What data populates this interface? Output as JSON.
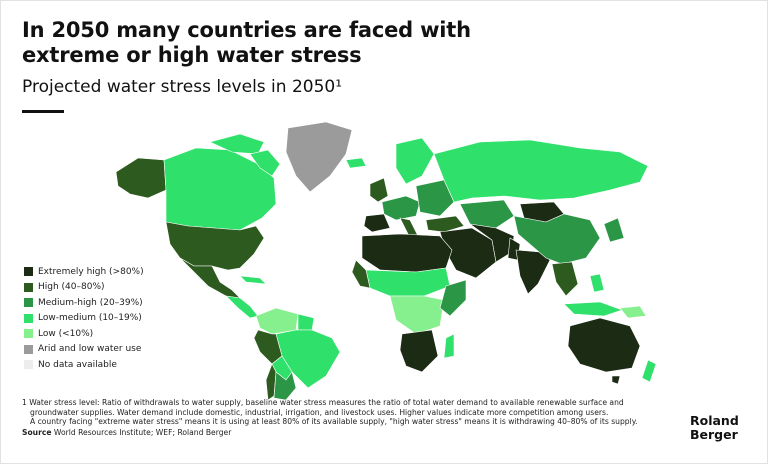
{
  "title": "In 2050 many countries are faced with extreme or high water stress",
  "subtitle": "Projected water stress levels in 2050¹",
  "legend": {
    "items": [
      {
        "label": "Extremely high (>80%)",
        "color": "#1c2b14"
      },
      {
        "label": "High (40–80%)",
        "color": "#2d5a1e"
      },
      {
        "label": "Medium-high (20–39%)",
        "color": "#2a9646"
      },
      {
        "label": "Low-medium (10–19%)",
        "color": "#2fe06a"
      },
      {
        "label": "Low (<10%)",
        "color": "#86f08f"
      },
      {
        "label": "Arid and low water use",
        "color": "#9b9b9b"
      },
      {
        "label": "No data available",
        "color": "#ededed"
      }
    ]
  },
  "map": {
    "colors": {
      "extremely_high": "#1c2b14",
      "high": "#2d5a1e",
      "medium_high": "#2a9646",
      "low_medium": "#2fe06a",
      "low": "#86f08f",
      "arid": "#9b9b9b",
      "no_data": "#ededed"
    }
  },
  "notes": {
    "footnote_line1": "1 Water stress level: Ratio of withdrawals to water supply, baseline water stress measures the ratio of total water demand to available renewable surface and",
    "footnote_line2": "groundwater supplies. Water demand include domestic, industrial, irrigation, and livestock uses. Higher values indicate more competition among users.",
    "footnote_line3": "A country facing \"extreme water stress\" means it is using at least 80% of its available supply, \"high water stress\" means it is withdrawing 40–80% of its supply.",
    "source_label": "Source",
    "source_text": " World Resources Institute; WEF; Roland Berger"
  },
  "logo": {
    "line1": "Roland",
    "line2": "Berger"
  }
}
